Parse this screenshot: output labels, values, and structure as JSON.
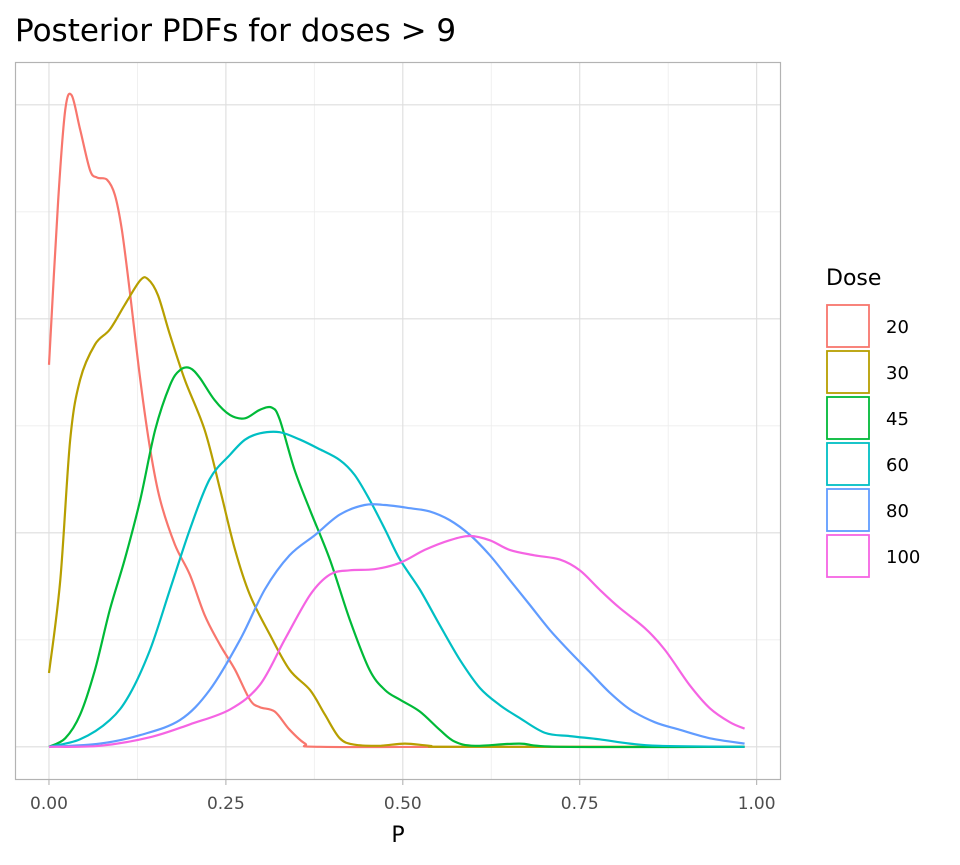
{
  "chart_data": {
    "type": "line",
    "title": "Posterior PDFs for doses > 9",
    "xlabel": "P",
    "ylabel": "",
    "xlim": [
      -0.048,
      1.033
    ],
    "ylim": [
      -0.31,
      6.4
    ],
    "x_ticks": [
      0,
      0.25,
      0.5,
      0.75,
      1.0
    ],
    "x_tick_labels": [
      "0.00",
      "0.25",
      "0.50",
      "0.75",
      "1.00"
    ],
    "y_tick_labels_shown": false,
    "grid": true,
    "legend": {
      "title": "Dose",
      "position": "right"
    },
    "series": [
      {
        "name": "20",
        "color": "#F8766D",
        "points": [
          [
            0,
            3.57
          ],
          [
            0.013,
            5.11
          ],
          [
            0.023,
            5.95
          ],
          [
            0.032,
            6.09
          ],
          [
            0.044,
            5.77
          ],
          [
            0.058,
            5.39
          ],
          [
            0.068,
            5.32
          ],
          [
            0.082,
            5.3
          ],
          [
            0.093,
            5.16
          ],
          [
            0.103,
            4.83
          ],
          [
            0.114,
            4.27
          ],
          [
            0.129,
            3.43
          ],
          [
            0.143,
            2.78
          ],
          [
            0.157,
            2.31
          ],
          [
            0.178,
            1.89
          ],
          [
            0.199,
            1.61
          ],
          [
            0.22,
            1.23
          ],
          [
            0.242,
            0.95
          ],
          [
            0.263,
            0.72
          ],
          [
            0.284,
            0.44
          ],
          [
            0.298,
            0.37
          ],
          [
            0.319,
            0.33
          ],
          [
            0.34,
            0.16
          ],
          [
            0.362,
            0.03
          ],
          [
            0.383,
            0
          ],
          [
            0.6,
            0
          ],
          [
            0.983,
            0
          ]
        ]
      },
      {
        "name": "30",
        "color": "#B79F00",
        "points": [
          [
            0,
            0.69
          ],
          [
            0.016,
            1.56
          ],
          [
            0.03,
            2.87
          ],
          [
            0.044,
            3.43
          ],
          [
            0.065,
            3.76
          ],
          [
            0.086,
            3.9
          ],
          [
            0.107,
            4.13
          ],
          [
            0.129,
            4.36
          ],
          [
            0.14,
            4.37
          ],
          [
            0.154,
            4.22
          ],
          [
            0.171,
            3.85
          ],
          [
            0.192,
            3.43
          ],
          [
            0.22,
            2.96
          ],
          [
            0.242,
            2.4
          ],
          [
            0.263,
            1.84
          ],
          [
            0.284,
            1.42
          ],
          [
            0.312,
            1.05
          ],
          [
            0.34,
            0.72
          ],
          [
            0.369,
            0.53
          ],
          [
            0.39,
            0.3
          ],
          [
            0.411,
            0.08
          ],
          [
            0.432,
            0.02
          ],
          [
            0.467,
            0.01
          ],
          [
            0.503,
            0.03
          ],
          [
            0.538,
            0.01
          ],
          [
            0.581,
            0
          ],
          [
            0.983,
            0
          ]
        ]
      },
      {
        "name": "45",
        "color": "#00BA38",
        "points": [
          [
            0,
            0
          ],
          [
            0.023,
            0.08
          ],
          [
            0.044,
            0.3
          ],
          [
            0.065,
            0.72
          ],
          [
            0.086,
            1.28
          ],
          [
            0.107,
            1.75
          ],
          [
            0.129,
            2.31
          ],
          [
            0.15,
            2.96
          ],
          [
            0.171,
            3.38
          ],
          [
            0.185,
            3.52
          ],
          [
            0.199,
            3.54
          ],
          [
            0.213,
            3.45
          ],
          [
            0.234,
            3.24
          ],
          [
            0.256,
            3.1
          ],
          [
            0.277,
            3.07
          ],
          [
            0.298,
            3.15
          ],
          [
            0.315,
            3.17
          ],
          [
            0.326,
            3.06
          ],
          [
            0.347,
            2.59
          ],
          [
            0.369,
            2.21
          ],
          [
            0.397,
            1.75
          ],
          [
            0.425,
            1.19
          ],
          [
            0.453,
            0.72
          ],
          [
            0.475,
            0.53
          ],
          [
            0.496,
            0.44
          ],
          [
            0.524,
            0.33
          ],
          [
            0.552,
            0.16
          ],
          [
            0.573,
            0.05
          ],
          [
            0.602,
            0.01
          ],
          [
            0.665,
            0.03
          ],
          [
            0.722,
            0
          ],
          [
            0.983,
            0
          ]
        ]
      },
      {
        "name": "60",
        "color": "#00BFC4",
        "points": [
          [
            0,
            0
          ],
          [
            0.044,
            0.07
          ],
          [
            0.086,
            0.25
          ],
          [
            0.114,
            0.49
          ],
          [
            0.143,
            0.91
          ],
          [
            0.171,
            1.47
          ],
          [
            0.199,
            2.03
          ],
          [
            0.227,
            2.5
          ],
          [
            0.256,
            2.73
          ],
          [
            0.277,
            2.87
          ],
          [
            0.298,
            2.93
          ],
          [
            0.326,
            2.94
          ],
          [
            0.355,
            2.87
          ],
          [
            0.383,
            2.78
          ],
          [
            0.411,
            2.68
          ],
          [
            0.432,
            2.54
          ],
          [
            0.453,
            2.31
          ],
          [
            0.475,
            2.03
          ],
          [
            0.496,
            1.75
          ],
          [
            0.524,
            1.47
          ],
          [
            0.552,
            1.14
          ],
          [
            0.581,
            0.81
          ],
          [
            0.609,
            0.55
          ],
          [
            0.637,
            0.39
          ],
          [
            0.665,
            0.27
          ],
          [
            0.701,
            0.13
          ],
          [
            0.736,
            0.1
          ],
          [
            0.778,
            0.07
          ],
          [
            0.821,
            0.03
          ],
          [
            0.863,
            0.01
          ],
          [
            0.983,
            0
          ]
        ]
      },
      {
        "name": "80",
        "color": "#619CFF",
        "points": [
          [
            0,
            0
          ],
          [
            0.072,
            0.03
          ],
          [
            0.129,
            0.11
          ],
          [
            0.185,
            0.25
          ],
          [
            0.227,
            0.53
          ],
          [
            0.27,
            1.0
          ],
          [
            0.305,
            1.47
          ],
          [
            0.34,
            1.79
          ],
          [
            0.376,
            1.98
          ],
          [
            0.411,
            2.17
          ],
          [
            0.446,
            2.26
          ],
          [
            0.475,
            2.26
          ],
          [
            0.51,
            2.23
          ],
          [
            0.538,
            2.2
          ],
          [
            0.566,
            2.12
          ],
          [
            0.595,
            1.98
          ],
          [
            0.623,
            1.79
          ],
          [
            0.651,
            1.56
          ],
          [
            0.679,
            1.33
          ],
          [
            0.708,
            1.09
          ],
          [
            0.736,
            0.89
          ],
          [
            0.764,
            0.7
          ],
          [
            0.792,
            0.51
          ],
          [
            0.821,
            0.35
          ],
          [
            0.856,
            0.23
          ],
          [
            0.891,
            0.16
          ],
          [
            0.934,
            0.08
          ],
          [
            0.983,
            0.03
          ]
        ]
      },
      {
        "name": "100",
        "color": "#F564E3",
        "points": [
          [
            0,
            0
          ],
          [
            0.072,
            0.01
          ],
          [
            0.143,
            0.09
          ],
          [
            0.199,
            0.21
          ],
          [
            0.256,
            0.35
          ],
          [
            0.298,
            0.58
          ],
          [
            0.333,
            1.0
          ],
          [
            0.369,
            1.42
          ],
          [
            0.397,
            1.61
          ],
          [
            0.425,
            1.65
          ],
          [
            0.46,
            1.66
          ],
          [
            0.496,
            1.72
          ],
          [
            0.531,
            1.84
          ],
          [
            0.566,
            1.93
          ],
          [
            0.595,
            1.97
          ],
          [
            0.623,
            1.93
          ],
          [
            0.651,
            1.84
          ],
          [
            0.686,
            1.79
          ],
          [
            0.722,
            1.75
          ],
          [
            0.75,
            1.65
          ],
          [
            0.778,
            1.47
          ],
          [
            0.806,
            1.3
          ],
          [
            0.842,
            1.11
          ],
          [
            0.87,
            0.91
          ],
          [
            0.905,
            0.58
          ],
          [
            0.934,
            0.36
          ],
          [
            0.962,
            0.23
          ],
          [
            0.983,
            0.17
          ]
        ]
      }
    ]
  }
}
